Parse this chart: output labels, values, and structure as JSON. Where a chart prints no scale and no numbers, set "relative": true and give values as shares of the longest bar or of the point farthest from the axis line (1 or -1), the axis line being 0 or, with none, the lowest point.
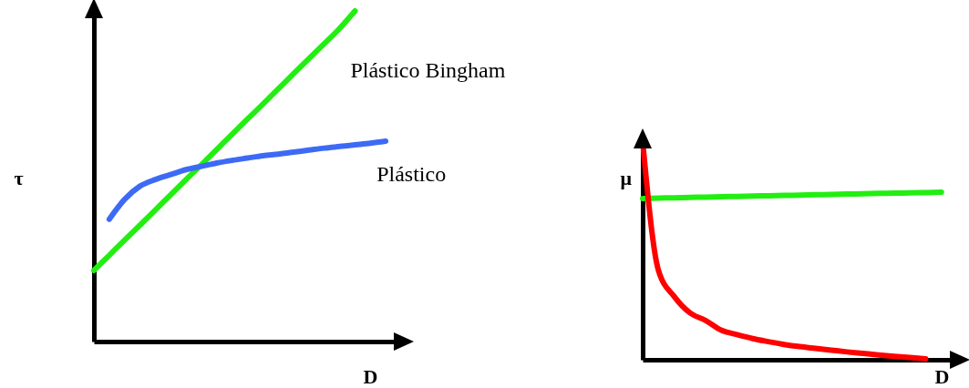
{
  "chart_data": [
    {
      "type": "line",
      "xlabel": "D",
      "ylabel": "τ",
      "relative": true,
      "tick_labels": false,
      "grid": false,
      "categories": [
        null,
        null,
        null,
        null,
        null,
        null,
        null,
        null,
        null,
        null,
        null,
        null,
        null,
        null,
        null,
        null,
        null,
        null,
        null,
        null,
        null
      ],
      "series": [
        {
          "name": "Plástico Bingham",
          "color": "#22ee11",
          "values": [
            0.215,
            0.261,
            0.307,
            0.352,
            0.398,
            0.444,
            0.49,
            0.535,
            0.581,
            0.627,
            0.673,
            0.718,
            0.764,
            0.81,
            0.856,
            0.901,
            0.947,
            1,
            null,
            null,
            null
          ]
        },
        {
          "name": "Plástico",
          "color": "#3d6af5",
          "values": [
            null,
            0.37,
            0.43,
            0.47,
            0.49,
            0.505,
            0.52,
            0.53,
            0.54,
            0.548,
            0.555,
            0.562,
            0.567,
            0.573,
            0.579,
            0.585,
            0.59,
            0.595,
            0.6,
            0.606,
            null
          ]
        }
      ]
    },
    {
      "type": "line",
      "xlabel": "D",
      "ylabel": "μ",
      "relative": true,
      "tick_labels": false,
      "grid": false,
      "categories": [
        null,
        null,
        null,
        null,
        null,
        null,
        null,
        null,
        null,
        null,
        null,
        null,
        null,
        null,
        null,
        null,
        null,
        null,
        null,
        null,
        null
      ],
      "series": [
        {
          "color": "#22ee11",
          "values": [
            0.738,
            0.74,
            0.741,
            0.743,
            0.744,
            0.746,
            0.747,
            0.749,
            0.75,
            0.752,
            0.753,
            0.755,
            0.756,
            0.758,
            0.759,
            0.761,
            0.762,
            0.764,
            0.765,
            0.767,
            null
          ]
        },
        {
          "color": "#ff0000",
          "values": [
            1,
            0.41,
            0.29,
            0.215,
            0.18,
            0.135,
            0.115,
            0.097,
            0.083,
            0.07,
            0.06,
            0.052,
            0.044,
            0.036,
            0.029,
            0.022,
            0.016,
            0.01,
            0.004,
            null,
            null
          ]
        }
      ]
    }
  ]
}
